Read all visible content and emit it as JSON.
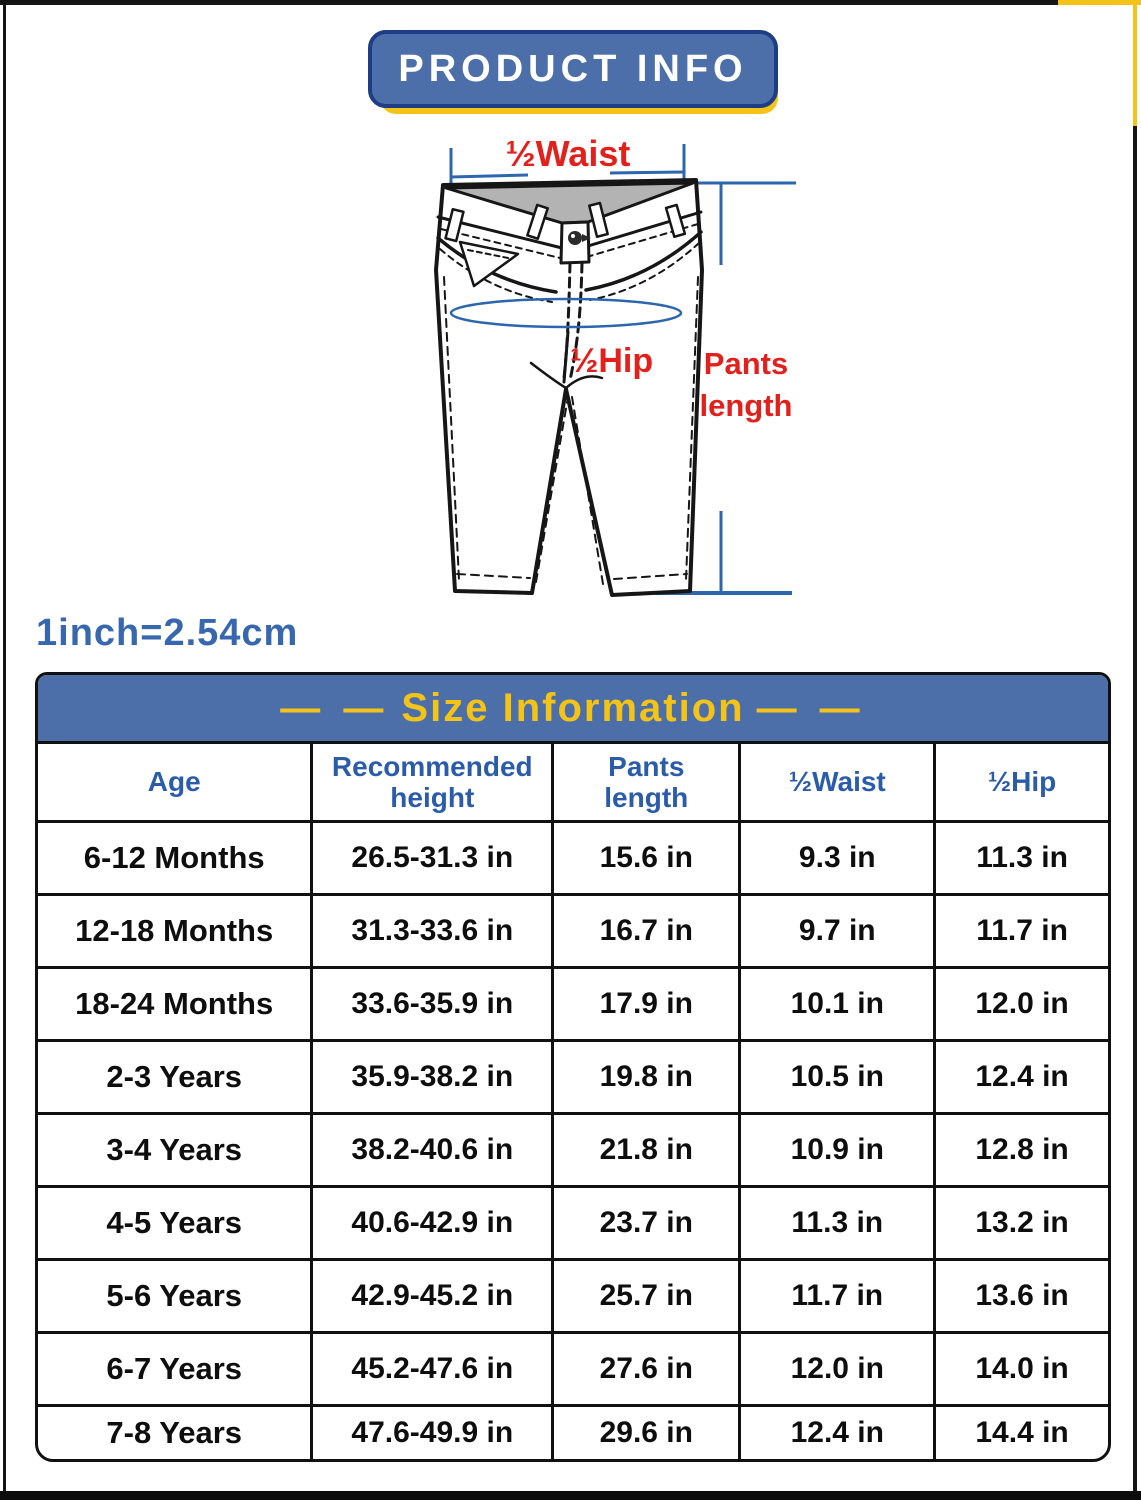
{
  "header": {
    "title": "PRODUCT INFO"
  },
  "diagram": {
    "waist_label": "½Waist",
    "hip_label": "½Hip",
    "length_label_line1": "Pants",
    "length_label_line2": "length"
  },
  "unit_note": "1inch=2.54cm",
  "size_table": {
    "dash_left": "— —",
    "title": "Size Information",
    "dash_right": "— —",
    "columns": [
      {
        "line1": "Age",
        "line2": ""
      },
      {
        "line1": "Recommended",
        "line2": "height"
      },
      {
        "line1": "Pants",
        "line2": "length"
      },
      {
        "line1": "½Waist",
        "line2": ""
      },
      {
        "line1": "½Hip",
        "line2": ""
      }
    ],
    "rows": [
      [
        "6-12 Months",
        "26.5-31.3 in",
        "15.6 in",
        "9.3 in",
        "11.3 in"
      ],
      [
        "12-18 Months",
        "31.3-33.6 in",
        "16.7 in",
        "9.7 in",
        "11.7 in"
      ],
      [
        "18-24 Months",
        "33.6-35.9 in",
        "17.9 in",
        "10.1 in",
        "12.0 in"
      ],
      [
        "2-3 Years",
        "35.9-38.2 in",
        "19.8 in",
        "10.5 in",
        "12.4 in"
      ],
      [
        "3-4 Years",
        "38.2-40.6 in",
        "21.8 in",
        "10.9 in",
        "12.8 in"
      ],
      [
        "4-5 Years",
        "40.6-42.9 in",
        "23.7 in",
        "11.3 in",
        "13.2 in"
      ],
      [
        "5-6 Years",
        "42.9-45.2 in",
        "25.7 in",
        "11.7 in",
        "13.6 in"
      ],
      [
        "6-7 Years",
        "45.2-47.6 in",
        "27.6 in",
        "12.0 in",
        "14.0 in"
      ],
      [
        "7-8 Years",
        "47.6-49.9 in",
        "29.6 in",
        "12.4 in",
        "14.4 in"
      ]
    ]
  },
  "colors": {
    "brand_blue": "#4d6fa9",
    "navy_border": "#1d3d85",
    "accent_yellow": "#f3c318",
    "label_red": "#e2201c",
    "text_blue": "#2b5cab",
    "measure_blue": "#2c66ad",
    "table_border": "#111111"
  }
}
